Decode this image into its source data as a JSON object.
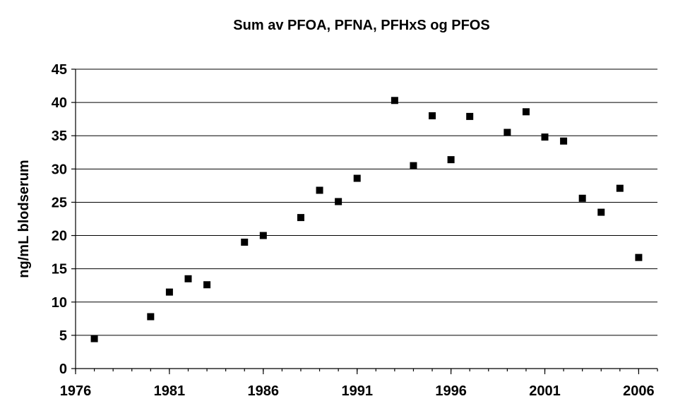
{
  "chart_data": {
    "type": "scatter",
    "title": "Sum av PFOA, PFNA, PFHxS og PFOS",
    "xlabel": "",
    "ylabel": "ng/mL blodserum",
    "xlim": [
      1976,
      2007
    ],
    "ylim": [
      0,
      45
    ],
    "x_ticks": [
      1976,
      1981,
      1986,
      1991,
      1996,
      2001,
      2006
    ],
    "y_ticks": [
      0,
      5,
      10,
      15,
      20,
      25,
      30,
      35,
      40,
      45
    ],
    "grid": "horizontal",
    "marker_color": "#000000",
    "points": [
      {
        "x": 1977,
        "y": 4.5
      },
      {
        "x": 1980,
        "y": 7.8
      },
      {
        "x": 1981,
        "y": 11.5
      },
      {
        "x": 1982,
        "y": 13.5
      },
      {
        "x": 1983,
        "y": 12.6
      },
      {
        "x": 1985,
        "y": 19.0
      },
      {
        "x": 1986,
        "y": 20.0
      },
      {
        "x": 1988,
        "y": 22.7
      },
      {
        "x": 1989,
        "y": 26.8
      },
      {
        "x": 1990,
        "y": 25.1
      },
      {
        "x": 1991,
        "y": 28.6
      },
      {
        "x": 1993,
        "y": 40.3
      },
      {
        "x": 1994,
        "y": 30.5
      },
      {
        "x": 1995,
        "y": 38.0
      },
      {
        "x": 1996,
        "y": 31.4
      },
      {
        "x": 1997,
        "y": 37.9
      },
      {
        "x": 1999,
        "y": 35.5
      },
      {
        "x": 2000,
        "y": 38.6
      },
      {
        "x": 2001,
        "y": 34.8
      },
      {
        "x": 2002,
        "y": 34.2
      },
      {
        "x": 2003,
        "y": 25.6
      },
      {
        "x": 2004,
        "y": 23.5
      },
      {
        "x": 2005,
        "y": 27.1
      },
      {
        "x": 2006,
        "y": 16.7
      }
    ]
  }
}
